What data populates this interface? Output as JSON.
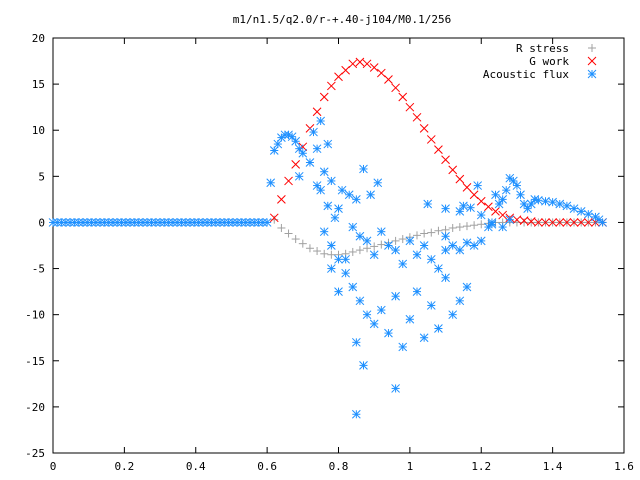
{
  "chart_data": {
    "type": "scatter",
    "title": "m1/n1.5/q2.0/r-+.40-j104/M0.1/256",
    "xlabel": "",
    "ylabel": "",
    "xlim": [
      0,
      1.6
    ],
    "ylim": [
      -25,
      20
    ],
    "xticks": [
      "0",
      "0.2",
      "0.4",
      "0.6",
      "0.8",
      "1",
      "1.2",
      "1.4",
      "1.6"
    ],
    "yticks": [
      "20",
      "15",
      "10",
      "5",
      "0",
      "-5",
      "-10",
      "-15",
      "-20",
      "-25"
    ],
    "grid": false,
    "legend_position": "top-right",
    "series": [
      {
        "name": "R stress",
        "marker": "plus",
        "color": "#a0a0a0",
        "points": [
          [
            0.62,
            0.3
          ],
          [
            0.64,
            -0.6
          ],
          [
            0.66,
            -1.2
          ],
          [
            0.68,
            -1.8
          ],
          [
            0.7,
            -2.3
          ],
          [
            0.72,
            -2.8
          ],
          [
            0.74,
            -3.1
          ],
          [
            0.76,
            -3.4
          ],
          [
            0.78,
            -3.5
          ],
          [
            0.8,
            -3.5
          ],
          [
            0.82,
            -3.4
          ],
          [
            0.84,
            -3.2
          ],
          [
            0.86,
            -3.0
          ],
          [
            0.88,
            -2.8
          ],
          [
            0.9,
            -2.6
          ],
          [
            0.92,
            -2.4
          ],
          [
            0.94,
            -2.2
          ],
          [
            0.96,
            -2.0
          ],
          [
            0.98,
            -1.8
          ],
          [
            1.0,
            -1.6
          ],
          [
            1.02,
            -1.4
          ],
          [
            1.04,
            -1.2
          ],
          [
            1.06,
            -1.1
          ],
          [
            1.08,
            -0.9
          ],
          [
            1.1,
            -0.8
          ],
          [
            1.12,
            -0.6
          ],
          [
            1.14,
            -0.5
          ],
          [
            1.16,
            -0.4
          ],
          [
            1.18,
            -0.3
          ],
          [
            1.2,
            -0.2
          ],
          [
            1.22,
            -0.1
          ],
          [
            1.24,
            0.0
          ],
          [
            1.26,
            0.0
          ],
          [
            1.28,
            0.0
          ],
          [
            1.3,
            0.0
          ],
          [
            1.32,
            0.0
          ],
          [
            1.34,
            0.0
          ],
          [
            1.36,
            0.0
          ],
          [
            1.38,
            0.0
          ],
          [
            1.4,
            0.0
          ],
          [
            1.42,
            0.0
          ],
          [
            1.44,
            0.0
          ],
          [
            1.46,
            0.0
          ],
          [
            1.48,
            0.0
          ],
          [
            1.5,
            0.0
          ],
          [
            1.52,
            0.0
          ],
          [
            1.54,
            0.0
          ]
        ]
      },
      {
        "name": "G work",
        "marker": "cross",
        "color": "#ff0000",
        "points": [
          [
            0.62,
            0.5
          ],
          [
            0.64,
            2.5
          ],
          [
            0.66,
            4.5
          ],
          [
            0.68,
            6.3
          ],
          [
            0.7,
            8.2
          ],
          [
            0.72,
            10.2
          ],
          [
            0.74,
            12.0
          ],
          [
            0.76,
            13.6
          ],
          [
            0.78,
            14.8
          ],
          [
            0.8,
            15.8
          ],
          [
            0.82,
            16.5
          ],
          [
            0.84,
            17.2
          ],
          [
            0.86,
            17.4
          ],
          [
            0.88,
            17.2
          ],
          [
            0.9,
            16.8
          ],
          [
            0.92,
            16.2
          ],
          [
            0.94,
            15.5
          ],
          [
            0.96,
            14.6
          ],
          [
            0.98,
            13.6
          ],
          [
            1.0,
            12.5
          ],
          [
            1.02,
            11.4
          ],
          [
            1.04,
            10.2
          ],
          [
            1.06,
            9.0
          ],
          [
            1.08,
            7.9
          ],
          [
            1.1,
            6.8
          ],
          [
            1.12,
            5.7
          ],
          [
            1.14,
            4.7
          ],
          [
            1.16,
            3.8
          ],
          [
            1.18,
            3.0
          ],
          [
            1.2,
            2.3
          ],
          [
            1.22,
            1.7
          ],
          [
            1.24,
            1.2
          ],
          [
            1.26,
            0.8
          ],
          [
            1.28,
            0.5
          ],
          [
            1.3,
            0.3
          ],
          [
            1.32,
            0.2
          ],
          [
            1.34,
            0.1
          ],
          [
            1.36,
            0.0
          ],
          [
            1.38,
            0.0
          ],
          [
            1.4,
            0.0
          ],
          [
            1.42,
            0.0
          ],
          [
            1.44,
            0.0
          ],
          [
            1.46,
            0.0
          ],
          [
            1.48,
            0.0
          ],
          [
            1.5,
            0.0
          ],
          [
            1.52,
            0.0
          ],
          [
            1.54,
            0.0
          ]
        ]
      },
      {
        "name": "Acoustic flux",
        "marker": "star",
        "color": "#1e90ff",
        "points": [
          [
            0.61,
            4.3
          ],
          [
            0.62,
            7.8
          ],
          [
            0.63,
            8.5
          ],
          [
            0.64,
            9.2
          ],
          [
            0.65,
            9.5
          ],
          [
            0.66,
            9.5
          ],
          [
            0.67,
            9.3
          ],
          [
            0.68,
            8.8
          ],
          [
            0.69,
            8.0
          ],
          [
            0.7,
            7.5
          ],
          [
            0.69,
            5.0
          ],
          [
            0.72,
            6.5
          ],
          [
            0.73,
            9.8
          ],
          [
            0.74,
            8.0
          ],
          [
            0.75,
            11.0
          ],
          [
            0.76,
            5.5
          ],
          [
            0.77,
            8.5
          ],
          [
            0.78,
            4.5
          ],
          [
            0.74,
            4.0
          ],
          [
            0.75,
            3.5
          ],
          [
            0.77,
            1.8
          ],
          [
            0.79,
            0.5
          ],
          [
            0.8,
            1.5
          ],
          [
            0.81,
            3.5
          ],
          [
            0.83,
            3.0
          ],
          [
            0.85,
            2.5
          ],
          [
            0.87,
            5.8
          ],
          [
            0.89,
            3.0
          ],
          [
            0.91,
            4.3
          ],
          [
            0.84,
            -0.5
          ],
          [
            0.86,
            -1.5
          ],
          [
            0.88,
            -2.0
          ],
          [
            0.9,
            -3.5
          ],
          [
            0.92,
            -1.0
          ],
          [
            0.94,
            -2.5
          ],
          [
            0.96,
            -3.0
          ],
          [
            0.98,
            -4.5
          ],
          [
            1.0,
            -2.0
          ],
          [
            1.02,
            -3.5
          ],
          [
            1.04,
            -2.5
          ],
          [
            1.06,
            -4.0
          ],
          [
            1.08,
            -5.0
          ],
          [
            1.1,
            -3.0
          ],
          [
            1.12,
            -2.5
          ],
          [
            1.14,
            -3.0
          ],
          [
            1.16,
            -2.2
          ],
          [
            1.18,
            -2.5
          ],
          [
            1.2,
            -2.0
          ],
          [
            0.76,
            -1.0
          ],
          [
            0.78,
            -2.5
          ],
          [
            0.8,
            -4.0
          ],
          [
            0.82,
            -5.5
          ],
          [
            0.84,
            -7.0
          ],
          [
            0.86,
            -8.5
          ],
          [
            0.88,
            -10.0
          ],
          [
            0.9,
            -11.0
          ],
          [
            0.92,
            -9.5
          ],
          [
            0.94,
            -12.0
          ],
          [
            0.96,
            -8.0
          ],
          [
            0.98,
            -13.5
          ],
          [
            1.0,
            -10.5
          ],
          [
            1.02,
            -7.5
          ],
          [
            1.04,
            -12.5
          ],
          [
            1.06,
            -9.0
          ],
          [
            1.08,
            -11.5
          ],
          [
            1.1,
            -6.0
          ],
          [
            1.12,
            -10.0
          ],
          [
            1.14,
            -8.5
          ],
          [
            1.16,
            -7.0
          ],
          [
            0.85,
            -20.8
          ],
          [
            0.85,
            -13.0
          ],
          [
            0.87,
            -15.5
          ],
          [
            0.96,
            -18.0
          ],
          [
            0.78,
            -5.0
          ],
          [
            0.8,
            -7.5
          ],
          [
            0.82,
            -4.0
          ],
          [
            1.05,
            2.0
          ],
          [
            1.1,
            1.5
          ],
          [
            1.14,
            1.2
          ],
          [
            1.17,
            1.6
          ],
          [
            1.19,
            4.0
          ],
          [
            1.2,
            0.8
          ],
          [
            1.22,
            -0.5
          ],
          [
            1.24,
            3.0
          ],
          [
            1.25,
            2.0
          ],
          [
            1.26,
            2.5
          ],
          [
            1.27,
            3.5
          ],
          [
            1.28,
            4.8
          ],
          [
            1.29,
            4.5
          ],
          [
            1.3,
            4.0
          ],
          [
            1.31,
            3.0
          ],
          [
            1.32,
            2.0
          ],
          [
            1.33,
            1.5
          ],
          [
            1.34,
            2.0
          ],
          [
            1.35,
            2.5
          ],
          [
            1.36,
            2.4
          ],
          [
            1.38,
            2.3
          ],
          [
            1.4,
            2.2
          ],
          [
            1.42,
            2.0
          ],
          [
            1.44,
            1.8
          ],
          [
            1.46,
            1.5
          ],
          [
            1.48,
            1.2
          ],
          [
            1.5,
            0.9
          ],
          [
            1.52,
            0.6
          ],
          [
            1.53,
            0.3
          ],
          [
            1.54,
            0.0
          ],
          [
            1.1,
            -1.5
          ],
          [
            1.15,
            1.8
          ],
          [
            1.23,
            -0.2
          ],
          [
            1.26,
            -0.5
          ],
          [
            1.23,
            0.0
          ],
          [
            1.28,
            0.3
          ]
        ]
      }
    ],
    "baseline": {
      "series": "Acoustic flux",
      "x_from": 0,
      "x_to": 0.6,
      "y": 0
    }
  }
}
